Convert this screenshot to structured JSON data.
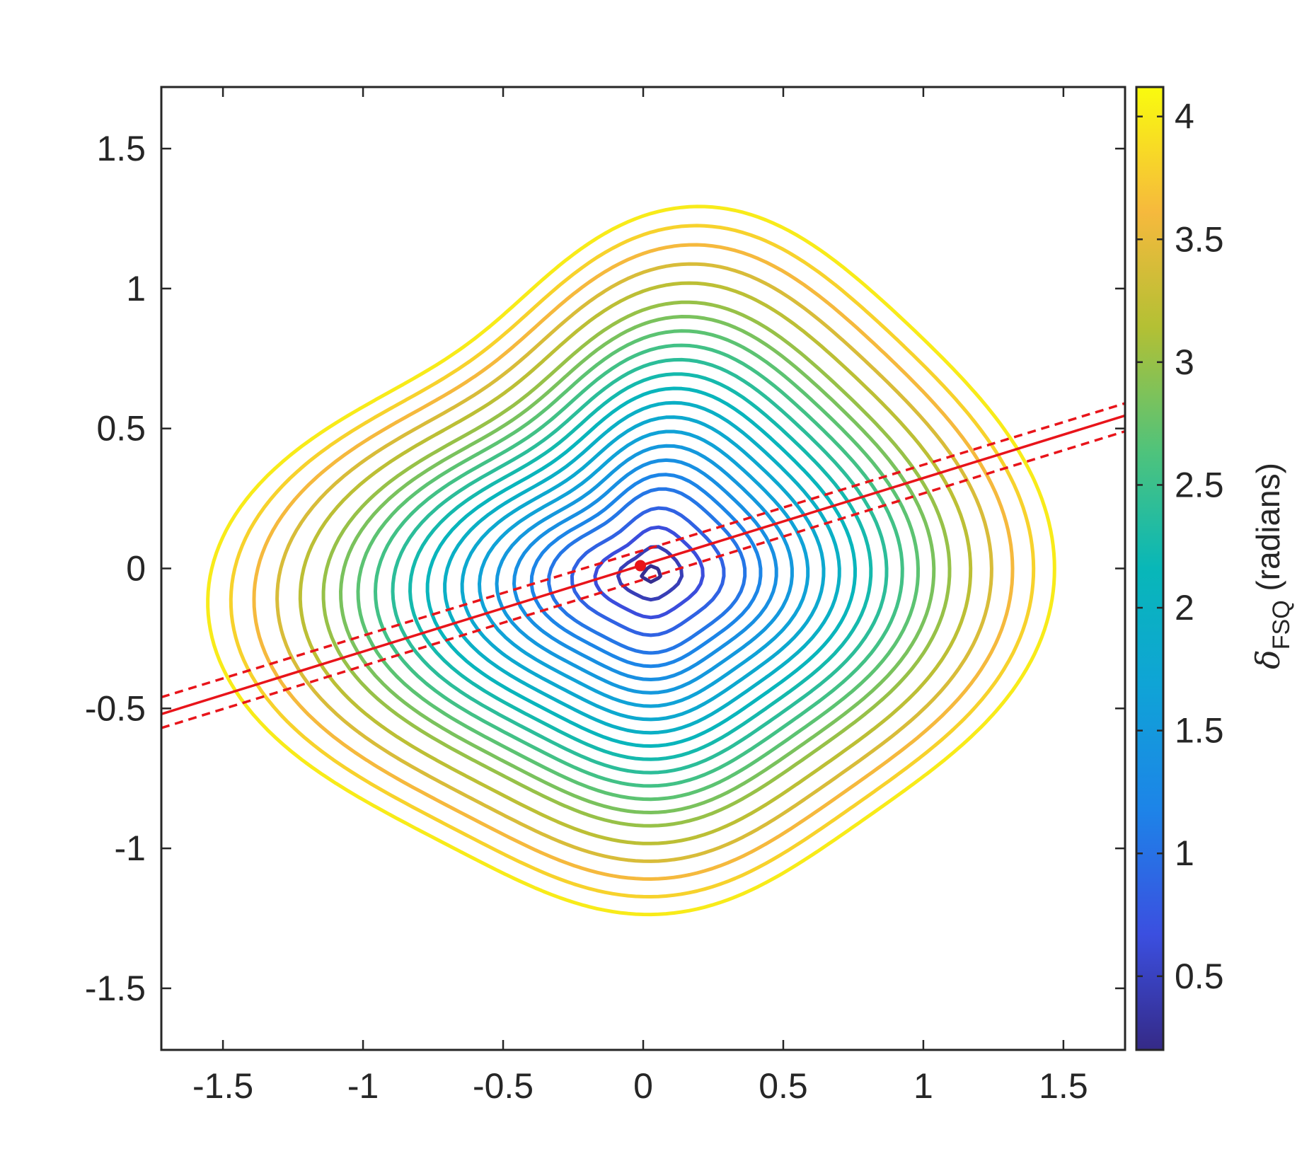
{
  "chart_data": {
    "type": "contour",
    "title": "",
    "xlabel": "",
    "ylabel": "",
    "xlim": [
      -1.72,
      1.72
    ],
    "ylim": [
      -1.72,
      1.72
    ],
    "x_ticks": [
      -1.5,
      -1,
      -0.5,
      0,
      0.5,
      1,
      1.5
    ],
    "x_tick_labels": [
      "-1.5",
      "-1",
      "-0.5",
      "0",
      "0.5",
      "1",
      "1.5"
    ],
    "y_ticks": [
      -1.5,
      -1,
      -0.5,
      0,
      0.5,
      1,
      1.5
    ],
    "y_tick_labels": [
      "-1.5",
      "-1",
      "-0.5",
      "0",
      "0.5",
      "1",
      "1.5"
    ],
    "grid": false,
    "colormap": "parula",
    "contour_levels": [
      0.25,
      0.45,
      0.65,
      0.85,
      1.05,
      1.2,
      1.35,
      1.5,
      1.65,
      1.8,
      1.95,
      2.1,
      2.25,
      2.4,
      2.55,
      2.7,
      2.85,
      3.0,
      3.2,
      3.4,
      3.6,
      3.8,
      4.0
    ],
    "colorbar": {
      "label_symbol": "δ",
      "label_subscript": "FSQ",
      "label_suffix": " (radians)",
      "limits": [
        0.2,
        4.12
      ],
      "ticks": [
        0.5,
        1,
        1.5,
        2,
        2.5,
        3,
        3.5,
        4
      ],
      "tick_labels": [
        "0.5",
        "1",
        "1.5",
        "2",
        "2.5",
        "3",
        "3.5",
        "4"
      ]
    },
    "fit_line": {
      "color": "#e8141a",
      "center": [
        -0.01,
        0.01
      ],
      "slope": 0.31,
      "ci_lines": [
        {
          "at_xmin": -0.46,
          "at_xmax": 0.59
        },
        {
          "at_xmin": -0.57,
          "at_xmax": 0.49
        }
      ]
    },
    "center_point": {
      "x": -0.01,
      "y": 0.01,
      "color": "#e8141a"
    }
  }
}
